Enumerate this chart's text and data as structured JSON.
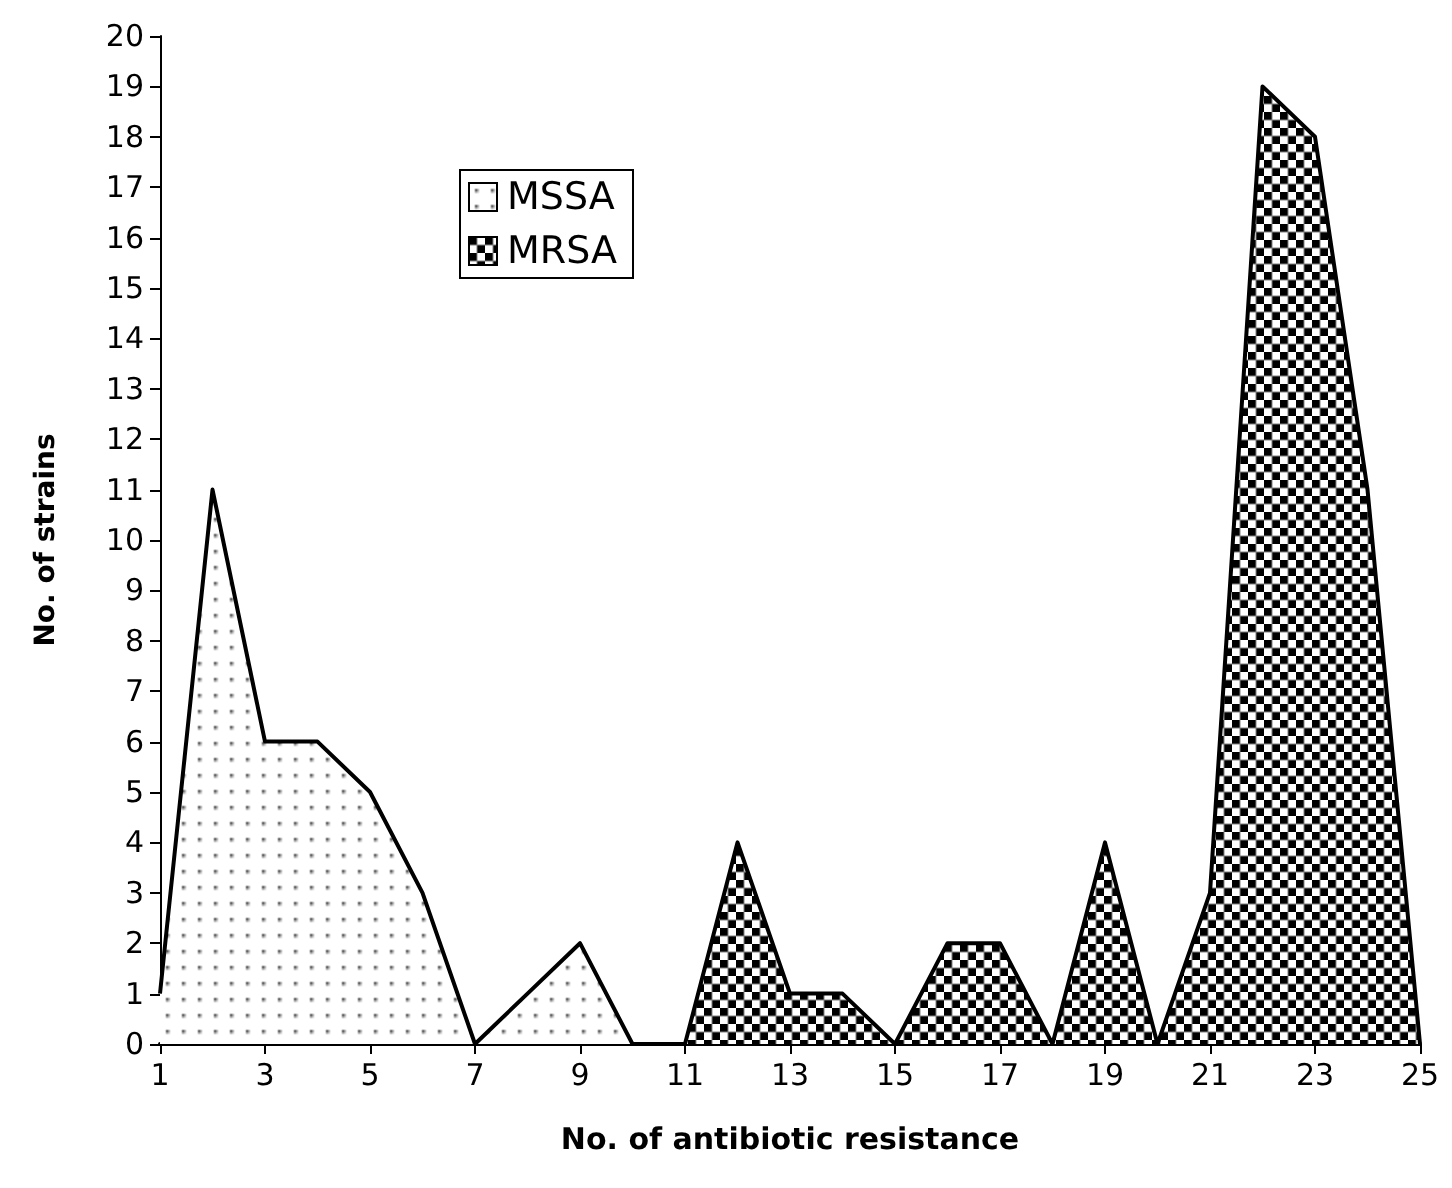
{
  "chart_data": {
    "type": "area",
    "xlabel": "No. of antibiotic resistance",
    "ylabel": "No. of strains",
    "xlim": [
      1,
      25
    ],
    "xticks": [
      1,
      3,
      5,
      7,
      9,
      11,
      13,
      15,
      17,
      19,
      21,
      23,
      25
    ],
    "ylim": [
      0,
      20
    ],
    "yticks": [
      0,
      1,
      2,
      3,
      4,
      5,
      6,
      7,
      8,
      9,
      10,
      11,
      12,
      13,
      14,
      15,
      16,
      17,
      18,
      19,
      20
    ],
    "grid": false,
    "legend": "top left",
    "series": [
      {
        "name": "MSSA",
        "color": "#ffffff",
        "x": [
          1,
          2,
          3,
          4,
          5,
          6,
          7,
          8,
          9,
          10
        ],
        "values": [
          1,
          11,
          6,
          6,
          5,
          3,
          0,
          1,
          2,
          0
        ]
      },
      {
        "name": "MRSA",
        "color": "#000000",
        "x": [
          11,
          12,
          13,
          14,
          15,
          16,
          17,
          18,
          19,
          20,
          21,
          22,
          23,
          24,
          25
        ],
        "values": [
          0,
          4,
          1,
          1,
          0,
          2,
          2,
          0,
          4,
          0,
          3,
          19,
          18,
          11,
          0
        ]
      }
    ]
  }
}
